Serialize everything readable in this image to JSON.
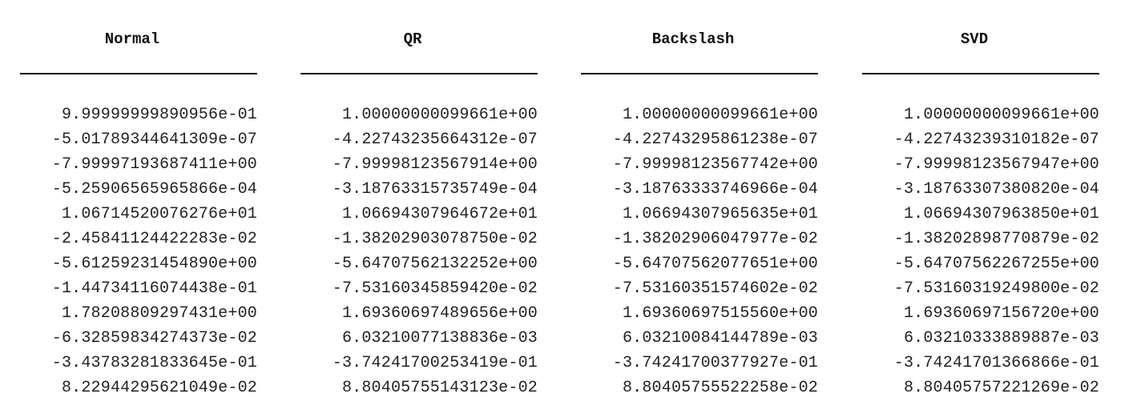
{
  "columns": [
    {
      "header": "Normal",
      "values": [
        "9.99999999890956e-01",
        "-5.01789344641309e-07",
        "-7.99997193687411e+00",
        "-5.25906565965866e-04",
        "1.06714520076276e+01",
        "-2.45841124422283e-02",
        "-5.61259231454890e+00",
        "-1.44734116074438e-01",
        "1.78208809297431e+00",
        "-6.32859834274373e-02",
        "-3.43783281833645e-01",
        "8.22944295621049e-02"
      ]
    },
    {
      "header": "QR",
      "values": [
        "1.00000000099661e+00",
        "-4.22743235664312e-07",
        "-7.99998123567914e+00",
        "-3.18763315735749e-04",
        "1.06694307964672e+01",
        "-1.38202903078750e-02",
        "-5.64707562132252e+00",
        "-7.53160345859420e-02",
        "1.69360697489656e+00",
        "6.03210077138836e-03",
        "-3.74241700253419e-01",
        "8.80405755143123e-02"
      ]
    },
    {
      "header": "Backslash",
      "values": [
        "1.00000000099661e+00",
        "-4.22743295861238e-07",
        "-7.99998123567742e+00",
        "-3.18763333746966e-04",
        "1.06694307965635e+01",
        "-1.38202906047977e-02",
        "-5.64707562077651e+00",
        "-7.53160351574602e-02",
        "1.69360697515560e+00",
        "6.03210084144789e-03",
        "-3.74241700377927e-01",
        "8.80405755522258e-02"
      ]
    },
    {
      "header": "SVD",
      "values": [
        "1.00000000099661e+00",
        "-4.22743239310182e-07",
        "-7.99998123567947e+00",
        "-3.18763307380820e-04",
        "1.06694307963850e+01",
        "-1.38202898770879e-02",
        "-5.64707562267255e+00",
        "-7.53160319249800e-02",
        "1.69360697156720e+00",
        "6.03210333889887e-03",
        "-3.74241701366866e-01",
        "8.80405757221269e-02"
      ]
    }
  ]
}
